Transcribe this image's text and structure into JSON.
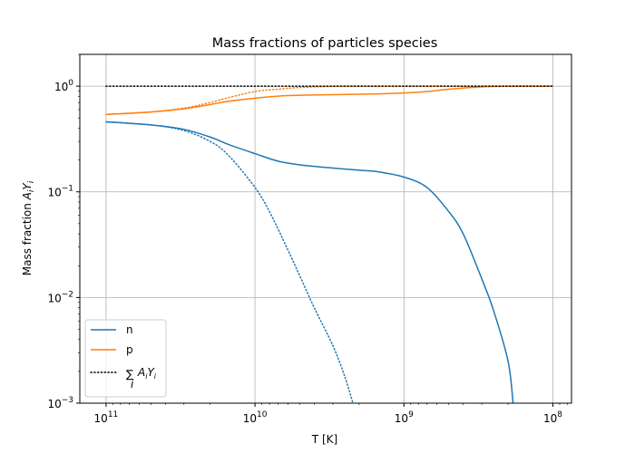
{
  "chart_data": {
    "type": "line",
    "title": "Mass fractions of particles species",
    "xlabel": "T [K]",
    "ylabel": "Mass fraction A_i Y_i",
    "x_scale": "log",
    "y_scale": "log",
    "x_inverted": true,
    "xlim": [
      150000000000.0,
      75000000.0
    ],
    "ylim": [
      0.001,
      2
    ],
    "grid": true,
    "legend_position": "lower-left",
    "x_ticks": [
      {
        "value": 100000000000.0,
        "base": "10",
        "exp": "11"
      },
      {
        "value": 10000000000.0,
        "base": "10",
        "exp": "10"
      },
      {
        "value": 1000000000.0,
        "base": "10",
        "exp": "9"
      },
      {
        "value": 100000000.0,
        "base": "10",
        "exp": "8"
      }
    ],
    "y_ticks": [
      {
        "value": 0.001,
        "base": "10",
        "exp": "−3"
      },
      {
        "value": 0.01,
        "base": "10",
        "exp": "−2"
      },
      {
        "value": 0.1,
        "base": "10",
        "exp": "−1"
      },
      {
        "value": 1,
        "base": "10",
        "exp": "0"
      }
    ],
    "series": [
      {
        "name": "n",
        "color": "#1f77b4",
        "style": "solid",
        "x": [
          100000000000.0,
          50000000000.0,
          30000000000.0,
          20000000000.0,
          15000000000.0,
          10000000000.0,
          7000000000.0,
          5000000000.0,
          3000000000.0,
          2000000000.0,
          1500000000.0,
          1000000000.0,
          700000000.0,
          500000000.0,
          400000000.0,
          300000000.0,
          250000000.0,
          200000000.0,
          185000000.0
        ],
        "y": [
          0.46,
          0.43,
          0.39,
          0.33,
          0.28,
          0.23,
          0.195,
          0.18,
          0.168,
          0.16,
          0.155,
          0.138,
          0.11,
          0.065,
          0.04,
          0.015,
          0.0075,
          0.0025,
          0.001
        ]
      },
      {
        "name": "",
        "color": "#1f77b4",
        "style": "dotted",
        "x": [
          100000000000.0,
          50000000000.0,
          30000000000.0,
          20000000000.0,
          15000000000.0,
          10000000000.0,
          8000000000.0,
          6000000000.0,
          5000000000.0,
          4000000000.0,
          3000000000.0,
          2500000000.0,
          2200000000.0
        ],
        "y": [
          0.46,
          0.43,
          0.38,
          0.3,
          0.22,
          0.11,
          0.065,
          0.028,
          0.016,
          0.008,
          0.0035,
          0.0018,
          0.001
        ]
      },
      {
        "name": "p",
        "color": "#ff7f0e",
        "style": "solid",
        "x": [
          100000000000.0,
          50000000000.0,
          30000000000.0,
          20000000000.0,
          15000000000.0,
          10000000000.0,
          7000000000.0,
          5000000000.0,
          3000000000.0,
          2000000000.0,
          1500000000.0,
          1000000000.0,
          700000000.0,
          500000000.0,
          300000000.0,
          200000000.0,
          150000000.0,
          100000000.0
        ],
        "y": [
          0.54,
          0.57,
          0.61,
          0.67,
          0.72,
          0.77,
          0.805,
          0.82,
          0.83,
          0.84,
          0.845,
          0.862,
          0.89,
          0.935,
          0.985,
          0.998,
          1.0,
          1.0
        ]
      },
      {
        "name": "",
        "color": "#ff7f0e",
        "style": "dotted",
        "x": [
          100000000000.0,
          50000000000.0,
          30000000000.0,
          20000000000.0,
          15000000000.0,
          10000000000.0,
          7000000000.0,
          5000000000.0,
          3000000000.0,
          2000000000.0,
          1000000000.0,
          100000000.0
        ],
        "y": [
          0.54,
          0.57,
          0.62,
          0.7,
          0.78,
          0.89,
          0.935,
          0.972,
          0.995,
          0.999,
          1.0,
          1.0
        ]
      },
      {
        "name": "∑_i A_i Y_i",
        "color": "#000000",
        "style": "dotted",
        "x": [
          100000000000.0,
          100000000.0
        ],
        "y": [
          1.0,
          1.0
        ]
      }
    ],
    "legend": [
      {
        "label": "n",
        "color": "#1f77b4",
        "style": "solid"
      },
      {
        "label": "p",
        "color": "#ff7f0e",
        "style": "solid"
      },
      {
        "label": "∑_i A_i Y_i",
        "color": "#000000",
        "style": "dotted"
      }
    ]
  }
}
